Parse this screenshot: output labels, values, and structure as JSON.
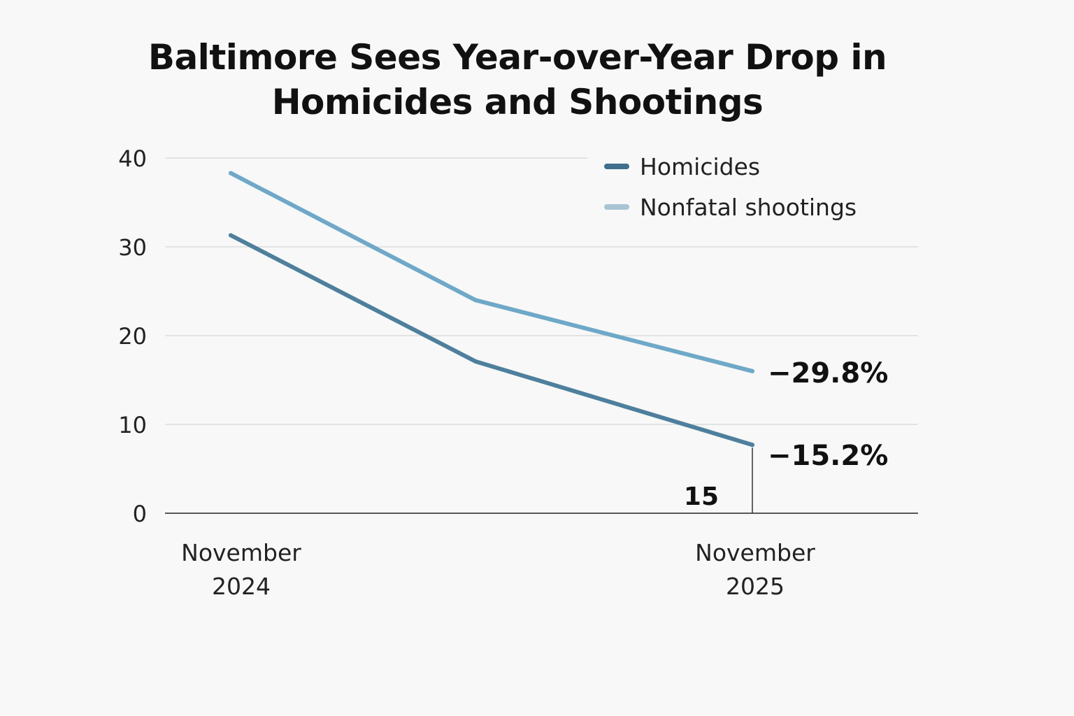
{
  "chart_data": {
    "type": "line",
    "title_lines": [
      "Baltimore Sees Year-over-Year Drop  in",
      "Homicides and Shootings"
    ],
    "xlabel": "",
    "ylabel": "",
    "ylim": [
      0,
      40
    ],
    "yticks": [
      "0",
      "10",
      "20",
      "30",
      "40"
    ],
    "grid": true,
    "legend_position": "top-right",
    "x": [
      0,
      1,
      2
    ],
    "categories": [
      {
        "line1": "November",
        "line2": "2024",
        "label": "November 2024"
      },
      {
        "line1": "",
        "line2": "",
        "label": ""
      },
      {
        "line1": "November",
        "line2": "2025",
        "label": "November 2025"
      }
    ],
    "series": [
      {
        "name": "Homicides",
        "color": "#4e7f9d",
        "values": [
          31.3,
          17.1,
          7.7
        ],
        "end_label": "−15.2%"
      },
      {
        "name": "Nonfatal shootings",
        "color": "#6fa8c8",
        "values": [
          38.3,
          24,
          16
        ],
        "end_label": "−29.8%"
      }
    ],
    "annotations": [
      {
        "text": "15"
      }
    ]
  }
}
